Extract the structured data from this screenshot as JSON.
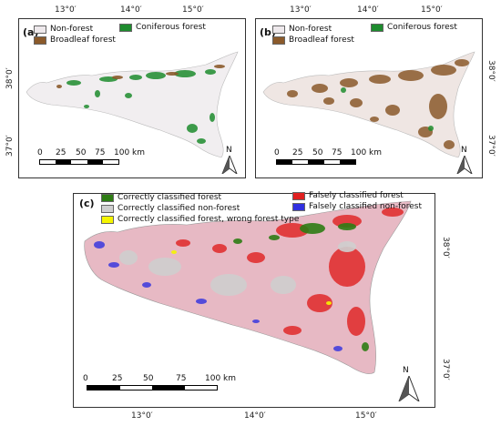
{
  "panel_a": {
    "label": "(a)",
    "legend": [
      {
        "label": "Non-forest",
        "color": "#eee9ec"
      },
      {
        "label": "Broadleaf forest",
        "color": "#8b5a2b"
      },
      {
        "label": "Coniferous forest",
        "color": "#1e8c2e"
      }
    ],
    "lon_ticks": [
      "13°0′",
      "14°0′",
      "15°0′"
    ],
    "lat_ticks": [
      "38°0′",
      "37°0′"
    ],
    "scale_labels": [
      "0",
      "25",
      "50",
      "75",
      "100 km"
    ],
    "north": "N"
  },
  "panel_b": {
    "label": "(b)",
    "legend": [
      {
        "label": "Non-forest",
        "color": "#eee9ec"
      },
      {
        "label": "Broadleaf forest",
        "color": "#8b5a2b"
      },
      {
        "label": "Coniferous forest",
        "color": "#1e8c2e"
      }
    ],
    "lon_ticks": [
      "13°0′",
      "14°0′",
      "15°0′"
    ],
    "lat_ticks": [
      "38°0′",
      "37°0′"
    ],
    "scale_labels": [
      "0",
      "25",
      "50",
      "75",
      "100 km"
    ],
    "north": "N"
  },
  "panel_c": {
    "label": "(c)",
    "legend": [
      {
        "label": "Correctly classified forest",
        "color": "#2e7d14"
      },
      {
        "label": "Correctly classified non-forest",
        "color": "#cfcfcf"
      },
      {
        "label": "Correctly classified forest, wrong forest type",
        "color": "#f5f500"
      },
      {
        "label": "Falsely classified forest",
        "color": "#e02020"
      },
      {
        "label": "Falsely classified non-forest",
        "color": "#3030e0"
      }
    ],
    "lon_ticks": [
      "13°0′",
      "14°0′",
      "15°0′"
    ],
    "lat_ticks": [
      "38°0′",
      "37°0′"
    ],
    "scale_labels": [
      "0",
      "25",
      "50",
      "75",
      "100 km"
    ],
    "north": "N"
  },
  "colors": {
    "island_a": "#f1eef0",
    "island_b": "#efe6e3",
    "island_c": "#e7b9c4"
  }
}
